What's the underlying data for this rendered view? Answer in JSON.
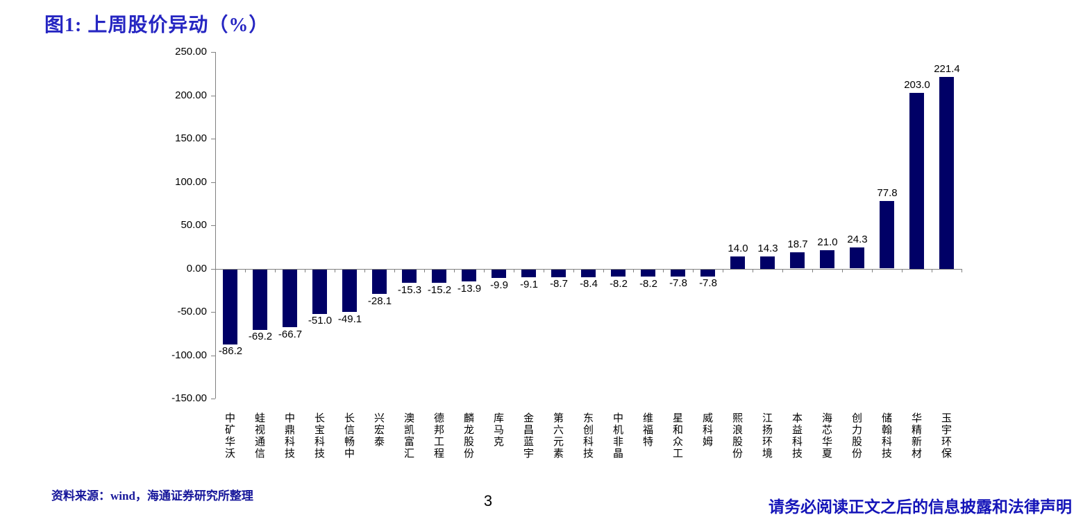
{
  "page": {
    "title": "图1:  上周股价异动（%）"
  },
  "chart_data": {
    "type": "bar",
    "title": "上周股价异动（%）",
    "categories": [
      "中矿华沃",
      "蛙视通信",
      "中鼎科技",
      "长宝科技",
      "长信畅中",
      "兴宏泰",
      "澳凯富汇",
      "德邦工程",
      "麟龙股份",
      "库马克",
      "金昌蓝宇",
      "第六元素",
      "东创科技",
      "中机非晶",
      "维福特",
      "星和众工",
      "威科姆",
      "熙浪股份",
      "江扬环境",
      "本益科技",
      "海芯华夏",
      "创力股份",
      "储翰科技",
      "华精新材",
      "玉宇环保"
    ],
    "values": [
      -86.2,
      -69.2,
      -66.7,
      -51.0,
      -49.1,
      -28.1,
      -15.3,
      -15.2,
      -13.9,
      -9.9,
      -9.1,
      -8.7,
      -8.4,
      -8.2,
      -8.2,
      -7.8,
      -7.8,
      14.0,
      14.3,
      18.7,
      21.0,
      24.3,
      77.8,
      203.0,
      221.4
    ],
    "value_labels": [
      "-86.2",
      "-69.2",
      "-66.7",
      "-51.0",
      "-49.1",
      "-28.1",
      "-15.3",
      "-15.2",
      "-13.9",
      "-9.9",
      "-9.1",
      "-8.7",
      "-8.4",
      "-8.2",
      "-8.2",
      "-7.8",
      "-7.8",
      "14.0",
      "14.3",
      "18.7",
      "21.0",
      "24.3",
      "77.8",
      "203.0",
      "221.4"
    ],
    "xlabel": "",
    "ylabel": "",
    "ylim": [
      -150,
      250
    ],
    "ytick_step": 50,
    "ytick_labels": [
      "250.00",
      "200.00",
      "150.00",
      "100.00",
      "50.00",
      "0.00",
      "-50.00",
      "-100.00",
      "-150.00"
    ],
    "grid": false,
    "legend": "none",
    "bar_color": "#000066",
    "axis_color": "#808080"
  },
  "footer": {
    "source": "资料来源：wind，海通证券研究所整理",
    "page_number": "3",
    "disclaimer": "请务必阅读正文之后的信息披露和法律声明"
  }
}
